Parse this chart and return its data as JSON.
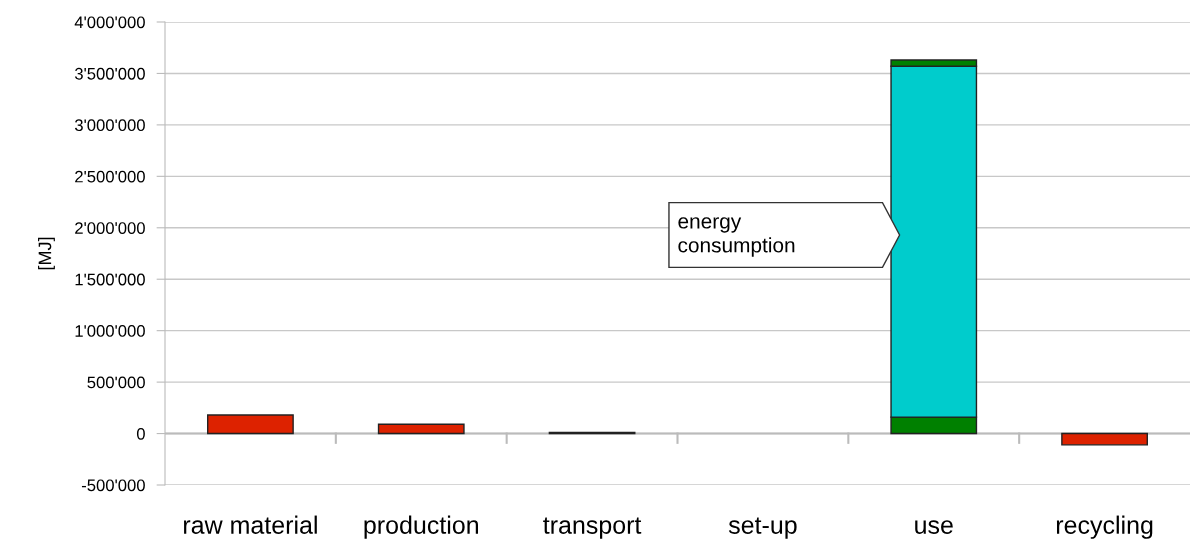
{
  "chart_data": {
    "type": "bar",
    "stacked": true,
    "ylabel": "[MJ]",
    "categories": [
      "raw material",
      "production",
      "transport",
      "set-up",
      "use",
      "recycling"
    ],
    "series": [
      {
        "colors": [
          "#dd2200",
          "#dd2200",
          "#dd2200",
          null,
          "#008000",
          "#dd2200"
        ],
        "values": [
          180000,
          90000,
          10000,
          null,
          160000,
          -110000
        ]
      },
      {
        "color": "#00cccc",
        "values": [
          null,
          null,
          null,
          null,
          3410000,
          null
        ]
      },
      {
        "color": "#008000",
        "values": [
          null,
          null,
          null,
          null,
          60000,
          null
        ]
      }
    ],
    "ylim": [
      -500000,
      4000000
    ],
    "yticks": [
      {
        "value": -500000,
        "label": "-500'000"
      },
      0,
      {
        "value": 500000,
        "label": "500'000"
      },
      {
        "value": 1000000,
        "label": "1'000'000"
      },
      {
        "value": 1500000,
        "label": "1'500'000"
      },
      {
        "value": 2000000,
        "label": "2'000'000"
      },
      {
        "value": 2500000,
        "label": "2'500'000"
      },
      {
        "value": 3000000,
        "label": "3'000'000"
      },
      {
        "value": 3500000,
        "label": "3'500'000"
      },
      {
        "value": 4000000,
        "label": "4'000'000"
      }
    ],
    "grid": "y",
    "annotations": [
      "energy\nconsumption"
    ]
  }
}
